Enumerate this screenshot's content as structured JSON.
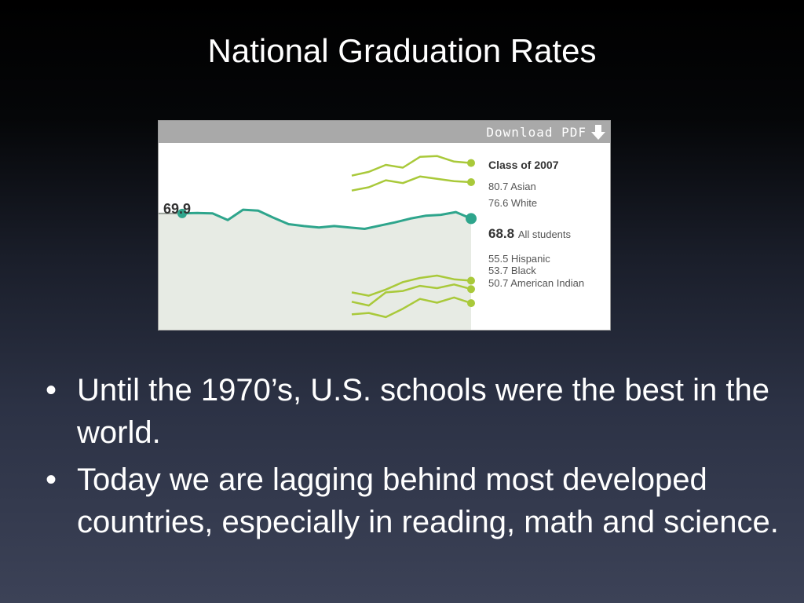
{
  "slide": {
    "title": "National Graduation Rates",
    "bullets": [
      "Until the 1970’s, U.S. schools were the best in the world.",
      "Today we are lagging behind most developed countries, especially in reading, math and science."
    ],
    "bullet_glyph": "•"
  },
  "chart_toolbar": {
    "download_label": "Download PDF"
  },
  "chart_data": {
    "type": "line",
    "legend_title": "Class of 2007",
    "start_label": "69.9",
    "y_range": [
      45,
      85
    ],
    "series": [
      {
        "name": "Asian",
        "value_label": "80.7",
        "color": "#a9c93a",
        "values": [
          78.0,
          78.8,
          80.3,
          79.7,
          82.0,
          82.2,
          81.0,
          80.7
        ]
      },
      {
        "name": "White",
        "value_label": "76.6",
        "color": "#a9c93a",
        "values": [
          74.8,
          75.5,
          77.0,
          76.4,
          77.8,
          77.3,
          76.8,
          76.6
        ]
      },
      {
        "name": "All students",
        "value_label": "68.8",
        "color": "#2ea58c",
        "values": [
          69.9,
          70.0,
          69.9,
          68.5,
          70.7,
          70.5,
          69.0,
          67.6,
          67.2,
          66.9,
          67.2,
          66.9,
          66.6,
          67.3,
          68.0,
          68.8,
          69.4,
          69.6,
          70.2,
          68.8
        ]
      },
      {
        "name": "Hispanic",
        "value_label": "55.5",
        "color": "#a9c93a",
        "values": [
          53.0,
          52.3,
          53.6,
          55.2,
          56.1,
          56.6,
          55.8,
          55.5
        ]
      },
      {
        "name": "Black",
        "value_label": "53.7",
        "color": "#a9c93a",
        "values": [
          51.0,
          50.2,
          53.0,
          53.3,
          54.4,
          53.9,
          54.7,
          53.7
        ]
      },
      {
        "name": "American Indian",
        "value_label": "50.7",
        "color": "#a9c93a",
        "values": [
          48.3,
          48.6,
          47.7,
          49.5,
          51.6,
          50.8,
          51.9,
          50.7
        ]
      }
    ]
  }
}
